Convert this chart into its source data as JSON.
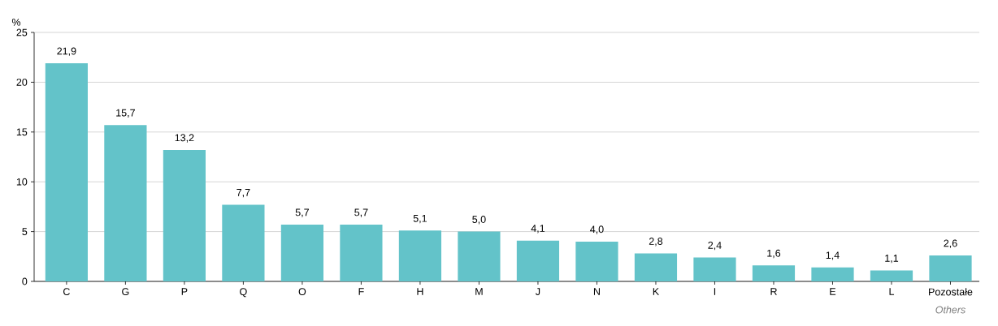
{
  "chart_data": {
    "type": "bar",
    "ylabel": "%",
    "categories": [
      "C",
      "G",
      "P",
      "Q",
      "O",
      "F",
      "H",
      "M",
      "J",
      "N",
      "K",
      "I",
      "R",
      "E",
      "L",
      "Pozostałe"
    ],
    "values": [
      21.9,
      15.7,
      13.2,
      7.7,
      5.7,
      5.7,
      5.1,
      5.0,
      4.1,
      4.0,
      2.8,
      2.4,
      1.6,
      1.4,
      1.1,
      2.6
    ],
    "value_labels": [
      "21,9",
      "15,7",
      "13,2",
      "7,7",
      "5,7",
      "5,7",
      "5,1",
      "5,0",
      "4,1",
      "4,0",
      "2,8",
      "2,4",
      "1,6",
      "1,4",
      "1,1",
      "2,6"
    ],
    "color": "#63c3c9",
    "ylim": [
      0,
      25
    ],
    "yticks": [
      0,
      5,
      10,
      15,
      20,
      25
    ],
    "grid": "y",
    "annotations": [
      "Others"
    ]
  }
}
